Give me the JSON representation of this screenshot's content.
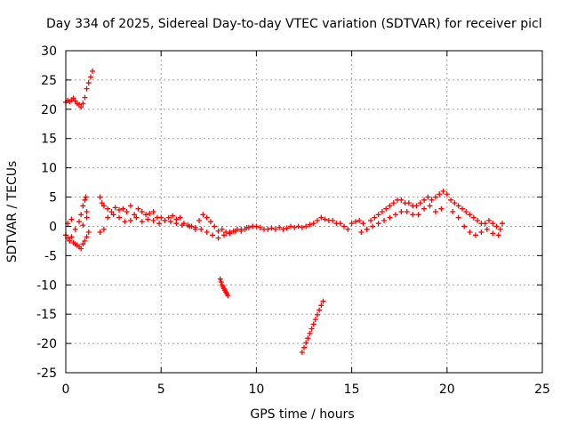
{
  "chart_data": {
    "type": "scatter",
    "title": "Day 334 of 2025, Sidereal Day-to-day VTEC variation (SDTVAR) for receiver picl",
    "xlabel": "GPS time / hours",
    "ylabel": "SDTVAR / TECUs",
    "xlim": [
      0,
      25
    ],
    "ylim": [
      -25,
      30
    ],
    "xticks": [
      0,
      5,
      10,
      15,
      20,
      25
    ],
    "yticks": [
      -25,
      -20,
      -15,
      -10,
      -5,
      0,
      5,
      10,
      15,
      20,
      25,
      30
    ],
    "grid": true,
    "marker": "+",
    "color": "#ff0000",
    "series": [
      {
        "name": "SDTVAR",
        "x": [
          0.0,
          0.1,
          0.2,
          0.3,
          0.4,
          0.5,
          0.6,
          0.7,
          0.8,
          0.9,
          1.0,
          1.1,
          1.2,
          1.3,
          1.4,
          0.0,
          0.1,
          0.2,
          0.3,
          0.4,
          0.5,
          0.6,
          0.7,
          0.8,
          0.9,
          1.0,
          1.1,
          1.2,
          0.1,
          0.3,
          0.5,
          0.7,
          0.9,
          1.1,
          0.8,
          0.9,
          1.0,
          1.05,
          1.1,
          1.8,
          1.9,
          2.0,
          2.2,
          2.4,
          2.6,
          2.8,
          3.0,
          3.2,
          3.4,
          3.6,
          3.8,
          4.0,
          4.2,
          4.4,
          4.6,
          4.8,
          5.0,
          5.2,
          5.4,
          5.6,
          5.8,
          6.0,
          1.8,
          2.0,
          2.2,
          2.5,
          2.8,
          3.1,
          3.4,
          3.7,
          4.0,
          4.3,
          4.6,
          4.9,
          5.2,
          5.5,
          5.8,
          6.1,
          6.2,
          6.4,
          6.6,
          6.8,
          7.0,
          7.2,
          7.4,
          7.6,
          7.8,
          8.0,
          8.2,
          8.4,
          8.6,
          8.8,
          9.0,
          9.2,
          9.4,
          9.6,
          9.8,
          10.0,
          6.5,
          6.8,
          7.1,
          7.4,
          7.7,
          8.0,
          8.3,
          8.6,
          8.9,
          9.2,
          9.5,
          9.8,
          10.2,
          10.4,
          10.6,
          10.8,
          11.0,
          11.2,
          11.4,
          11.6,
          11.8,
          12.0,
          12.2,
          12.4,
          12.6,
          12.8,
          13.0,
          13.2,
          13.4,
          13.6,
          13.8,
          14.0,
          14.2,
          14.4,
          14.6,
          14.8,
          15.0,
          15.2,
          15.4,
          15.6,
          15.8,
          16.0,
          16.2,
          16.4,
          16.6,
          16.8,
          17.0,
          17.2,
          17.4,
          17.6,
          17.8,
          18.0,
          18.2,
          18.4,
          18.6,
          18.8,
          19.0,
          19.2,
          19.4,
          19.6,
          19.8,
          20.0,
          15.5,
          15.8,
          16.1,
          16.4,
          16.7,
          17.0,
          17.3,
          17.6,
          17.9,
          18.2,
          18.5,
          18.8,
          19.1,
          19.4,
          19.7,
          20.2,
          20.4,
          20.6,
          20.8,
          21.0,
          21.2,
          21.4,
          21.6,
          21.8,
          22.0,
          22.2,
          22.4,
          22.6,
          22.8,
          22.9,
          20.3,
          20.6,
          20.9,
          21.2,
          21.5,
          21.8,
          22.1,
          22.4,
          22.7,
          8.1,
          8.15,
          8.2,
          8.25,
          8.3,
          8.35,
          8.4,
          8.45,
          8.5,
          12.4,
          12.5,
          12.6,
          12.7,
          12.8,
          12.9,
          13.0,
          13.1,
          13.2,
          13.3,
          13.4,
          13.5
        ],
        "y": [
          21.2,
          21.5,
          21.3,
          21.6,
          21.9,
          21.4,
          21.0,
          20.8,
          20.4,
          21.0,
          22.0,
          23.5,
          24.5,
          25.5,
          26.5,
          -1.5,
          -2.0,
          -2.5,
          -1.8,
          -2.8,
          -3.0,
          -3.2,
          -3.5,
          -3.8,
          -3.0,
          -2.5,
          -1.8,
          -1.0,
          0.5,
          1.2,
          -0.5,
          0.8,
          0.2,
          1.5,
          2.0,
          3.5,
          4.5,
          5.0,
          2.5,
          5.0,
          4.0,
          3.5,
          3.0,
          2.5,
          3.2,
          2.8,
          3.0,
          2.5,
          3.5,
          2.0,
          3.0,
          2.5,
          2.0,
          2.2,
          2.5,
          1.5,
          1.5,
          1.0,
          1.5,
          1.8,
          1.2,
          1.5,
          -1.0,
          -0.5,
          1.5,
          2.0,
          1.5,
          0.8,
          1.0,
          1.5,
          0.8,
          1.2,
          1.0,
          0.5,
          1.0,
          0.8,
          0.5,
          0.2,
          0.5,
          0.2,
          0.0,
          -0.5,
          1.0,
          2.0,
          1.5,
          0.8,
          0.0,
          -0.8,
          -0.5,
          -1.0,
          -1.2,
          -0.8,
          -0.5,
          -0.8,
          -0.5,
          -0.2,
          0.0,
          0.0,
          0.0,
          -0.2,
          -0.5,
          -1.0,
          -1.5,
          -2.0,
          -1.5,
          -1.0,
          -0.8,
          -0.5,
          -0.2,
          0.0,
          -0.2,
          -0.5,
          -0.5,
          -0.3,
          -0.5,
          -0.2,
          -0.5,
          -0.3,
          0.0,
          -0.2,
          0.0,
          -0.2,
          0.0,
          0.3,
          0.5,
          1.0,
          1.5,
          1.2,
          1.0,
          1.0,
          0.5,
          0.5,
          0.0,
          -0.5,
          0.5,
          0.8,
          1.0,
          0.5,
          -0.5,
          1.0,
          1.5,
          2.0,
          2.5,
          3.0,
          3.5,
          4.0,
          4.5,
          4.5,
          4.0,
          4.0,
          3.5,
          3.5,
          4.0,
          4.5,
          5.0,
          4.5,
          5.0,
          5.5,
          6.0,
          5.5,
          -1.0,
          -0.5,
          0.0,
          0.5,
          1.0,
          1.5,
          2.0,
          2.5,
          2.5,
          2.0,
          2.0,
          3.0,
          3.5,
          2.5,
          3.0,
          4.5,
          4.0,
          3.5,
          3.0,
          2.5,
          2.0,
          1.5,
          1.0,
          0.5,
          0.5,
          1.0,
          0.5,
          0.0,
          -0.5,
          0.5,
          2.5,
          1.5,
          0.0,
          -1.0,
          -1.5,
          -1.0,
          -0.5,
          -1.2,
          -1.5,
          -9.0,
          -9.5,
          -10.0,
          -10.3,
          -10.6,
          -10.9,
          -11.2,
          -11.5,
          -11.8,
          -21.5,
          -20.7,
          -19.9,
          -19.1,
          -18.3,
          -17.5,
          -16.7,
          -15.9,
          -15.1,
          -14.3,
          -13.5,
          -12.8
        ]
      }
    ]
  }
}
